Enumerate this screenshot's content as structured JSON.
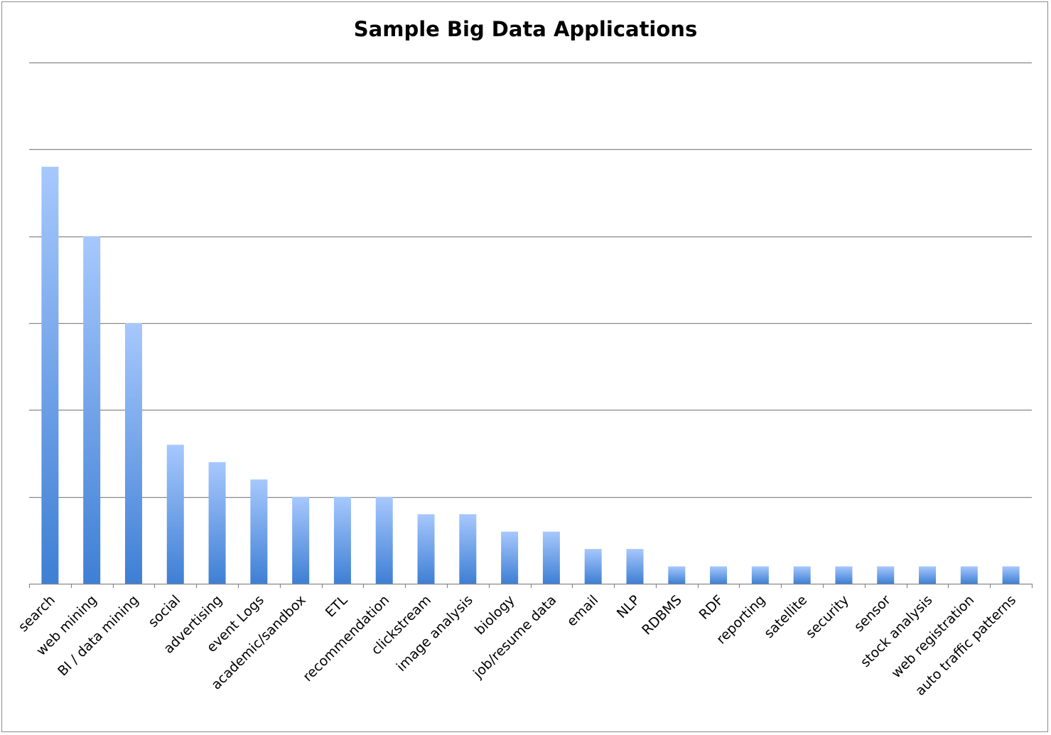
{
  "chart_data": {
    "type": "bar",
    "title": "Sample Big Data Applications",
    "xlabel": "",
    "ylabel": "",
    "categories": [
      "search",
      "web mining",
      "BI / data mining",
      "social",
      "advertising",
      "event Logs",
      "academic/sandbox",
      "ETL",
      "recommendation",
      "clickstream",
      "image analysis",
      "biology",
      "job/resume data",
      "email",
      "NLP",
      "RDBMS",
      "RDF",
      "reporting",
      "satellite",
      "security",
      "sensor",
      "stock analysis",
      "web registration",
      "auto traffic patterns"
    ],
    "values": [
      24,
      20,
      15,
      8,
      7,
      6,
      5,
      5,
      5,
      4,
      4,
      3,
      3,
      2,
      2,
      1,
      1,
      1,
      1,
      1,
      1,
      1,
      1,
      1
    ],
    "ylim": [
      0,
      30
    ],
    "y_gridlines": [
      5,
      10,
      15,
      20,
      25,
      30
    ],
    "y_tick_labels_shown": false,
    "grid": true,
    "legend": "none",
    "colors": {
      "bar_top": "#a7c8fd",
      "bar_bottom": "#3e7fd4",
      "grid": "#888888",
      "axis": "#888888"
    }
  }
}
